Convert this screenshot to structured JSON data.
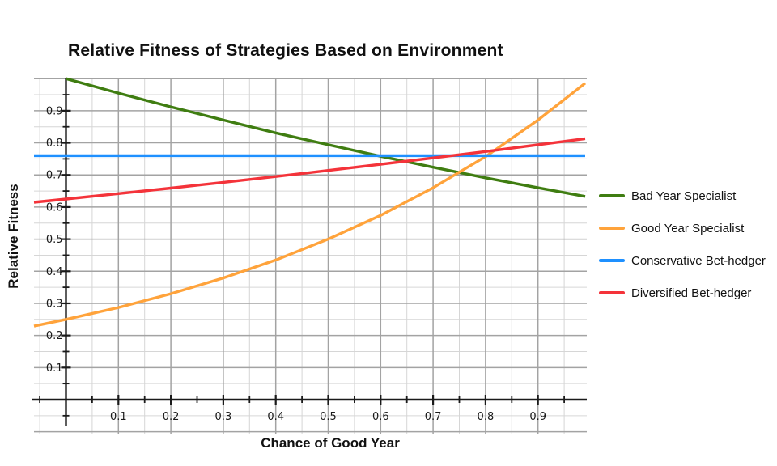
{
  "chart_data": {
    "type": "line",
    "title": "Relative Fitness of Strategies Based on Environment",
    "xlabel": "Chance of Good Year",
    "ylabel": "Relative Fitness",
    "xlim": [
      -0.061,
      0.99
    ],
    "ylim": [
      -0.108,
      1.0
    ],
    "grid": true,
    "minor_step": 0.05,
    "legend_position": "right",
    "x_ticks": [
      0.1,
      0.2,
      0.3,
      0.4,
      0.5,
      0.6,
      0.7,
      0.8,
      0.9
    ],
    "x_tick_labels": [
      "0.1",
      "0.2",
      "0.3",
      "0.4",
      "0.5",
      "0.6",
      "0.7",
      "0.8",
      "0.9"
    ],
    "y_ticks": [
      0.1,
      0.2,
      0.3,
      0.4,
      0.5,
      0.6,
      0.7,
      0.8,
      0.9
    ],
    "y_tick_labels": [
      "0.1",
      "0.2",
      "0.3",
      "0.4",
      "0.5",
      "0.6",
      "0.7",
      "0.8",
      "0.9"
    ],
    "colors": {
      "axis": "#1a1a1a",
      "grid_major": "#a3a3a3",
      "grid_minor": "#d6d6d6",
      "text": "#111111"
    },
    "series": [
      {
        "name": "Bad Year Specialist",
        "color": "#3f7d11",
        "x": [
          0,
          0.1,
          0.2,
          0.3,
          0.4,
          0.5,
          0.6,
          0.7,
          0.8,
          0.9,
          0.99
        ],
        "y": [
          1.0,
          0.955,
          0.912,
          0.871,
          0.831,
          0.794,
          0.758,
          0.724,
          0.691,
          0.66,
          0.633
        ]
      },
      {
        "name": "Good Year Specialist",
        "color": "#ffa33b",
        "x": [
          -0.061,
          0,
          0.1,
          0.2,
          0.3,
          0.4,
          0.5,
          0.6,
          0.7,
          0.8,
          0.9,
          0.99
        ],
        "y": [
          0.229,
          0.25,
          0.287,
          0.33,
          0.379,
          0.435,
          0.5,
          0.574,
          0.66,
          0.757,
          0.871,
          0.986
        ]
      },
      {
        "name": "Conservative Bet-hedger",
        "color": "#1e90ff",
        "x": [
          -0.061,
          0.99
        ],
        "y": [
          0.76,
          0.76
        ]
      },
      {
        "name": "Diversified Bet-hedger",
        "color": "#f4333a",
        "x": [
          -0.061,
          0,
          0.1,
          0.2,
          0.3,
          0.4,
          0.5,
          0.6,
          0.7,
          0.8,
          0.9,
          0.99
        ],
        "y": [
          0.615,
          0.625,
          0.642,
          0.659,
          0.677,
          0.695,
          0.714,
          0.733,
          0.753,
          0.773,
          0.794,
          0.813
        ]
      }
    ]
  }
}
